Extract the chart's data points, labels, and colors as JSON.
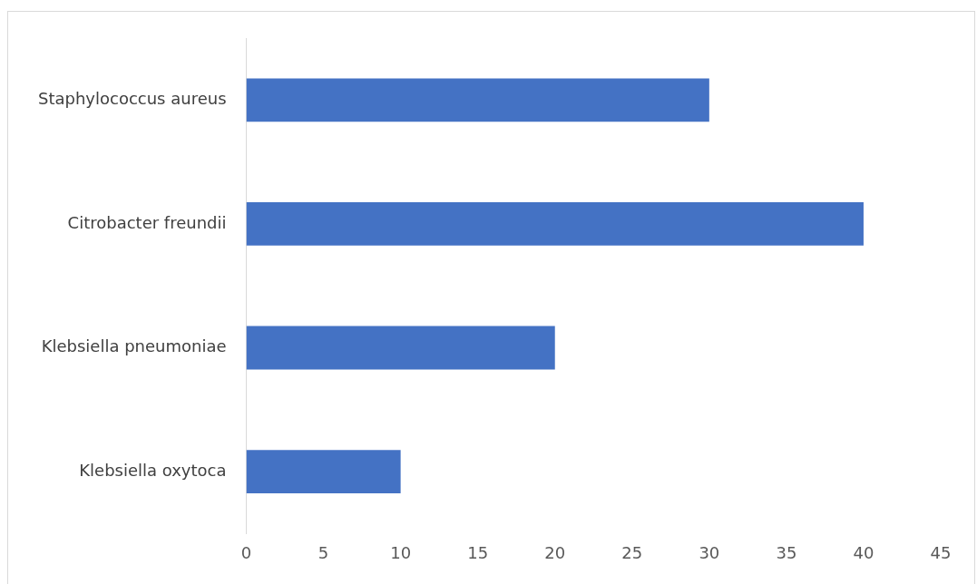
{
  "chart_data": {
    "type": "bar",
    "orientation": "horizontal",
    "categories": [
      "Staphylococcus aureus",
      "Citrobacter freundii",
      "Klebsiella pneumoniae",
      "Klebsiella oxytoca"
    ],
    "values": [
      30,
      40,
      20,
      10
    ],
    "color": "#4472c4",
    "xlim": [
      0,
      45
    ],
    "xticks": [
      0,
      5,
      10,
      15,
      20,
      25,
      30,
      35,
      40,
      45
    ],
    "grid": false
  }
}
